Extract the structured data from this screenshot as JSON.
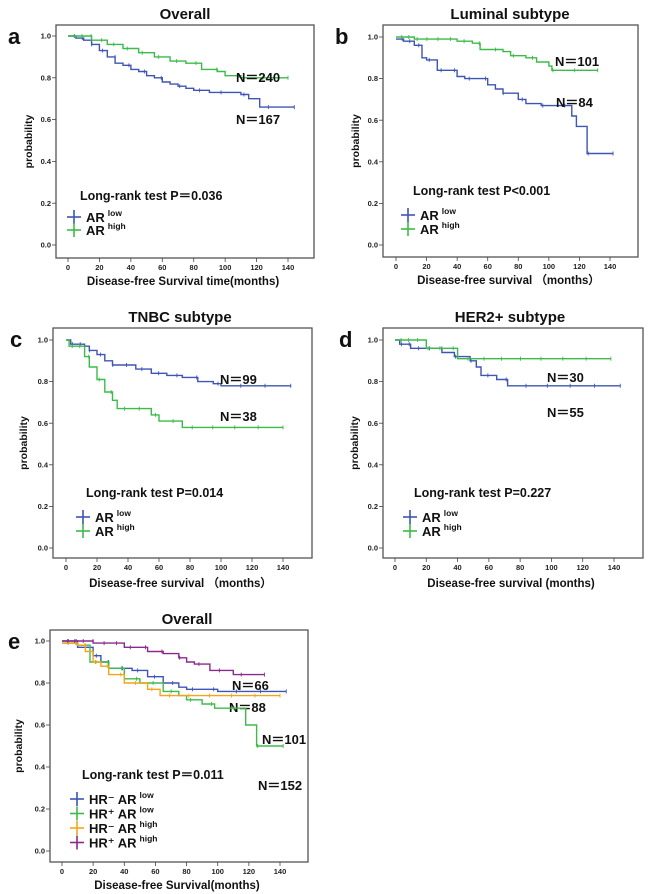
{
  "figure": {
    "panels": [
      "a",
      "b",
      "c",
      "d",
      "e"
    ]
  },
  "chart_data": [
    {
      "id": "a",
      "type": "line",
      "subtype": "kaplan-meier",
      "panel_label": "a",
      "title": "Overall",
      "xlabel": "Disease-free Survival time(months)",
      "ylabel": "probability",
      "xlim": [
        0,
        150
      ],
      "ylim": [
        0,
        1.0
      ],
      "xticks": [
        "0",
        "20",
        "40",
        "60",
        "80",
        "100",
        "120",
        "140"
      ],
      "yticks": [
        "0.0",
        "0.2",
        "0.4",
        "0.6",
        "0.8",
        "1.0"
      ],
      "annotation": "Long-rank test P＝0.036",
      "legend_position": "bottom-left",
      "series": [
        {
          "name": "AR low",
          "legend_main": "AR",
          "legend_sup": "low",
          "color": "#3e55b5",
          "n_label": "N＝167",
          "steps": [
            [
              0,
              1.0
            ],
            [
              5,
              0.99
            ],
            [
              10,
              0.98
            ],
            [
              15,
              0.96
            ],
            [
              20,
              0.93
            ],
            [
              25,
              0.9
            ],
            [
              30,
              0.87
            ],
            [
              35,
              0.86
            ],
            [
              40,
              0.84
            ],
            [
              45,
              0.83
            ],
            [
              50,
              0.81
            ],
            [
              55,
              0.8
            ],
            [
              60,
              0.78
            ],
            [
              65,
              0.77
            ],
            [
              70,
              0.76
            ],
            [
              75,
              0.75
            ],
            [
              80,
              0.74
            ],
            [
              85,
              0.74
            ],
            [
              90,
              0.73
            ],
            [
              100,
              0.73
            ],
            [
              110,
              0.72
            ],
            [
              115,
              0.7
            ],
            [
              122,
              0.66
            ],
            [
              144,
              0.66
            ]
          ]
        },
        {
          "name": "AR high",
          "legend_main": "AR",
          "legend_sup": "high",
          "color": "#3cbb4a",
          "n_label": "N＝240",
          "steps": [
            [
              0,
              1.0
            ],
            [
              10,
              1.0
            ],
            [
              15,
              0.98
            ],
            [
              25,
              0.96
            ],
            [
              35,
              0.94
            ],
            [
              45,
              0.92
            ],
            [
              55,
              0.9
            ],
            [
              65,
              0.88
            ],
            [
              75,
              0.87
            ],
            [
              85,
              0.84
            ],
            [
              95,
              0.83
            ],
            [
              100,
              0.81
            ],
            [
              110,
              0.8
            ],
            [
              140,
              0.8
            ]
          ]
        }
      ]
    },
    {
      "id": "b",
      "type": "line",
      "subtype": "kaplan-meier",
      "panel_label": "b",
      "title": "Luminal subtype",
      "xlabel": "Disease-free survival （months）",
      "ylabel": "probability",
      "xlim": [
        0,
        150
      ],
      "ylim": [
        0,
        1.0
      ],
      "xticks": [
        "0",
        "20",
        "40",
        "60",
        "80",
        "100",
        "120",
        "140"
      ],
      "yticks": [
        "0.0",
        "0.2",
        "0.4",
        "0.6",
        "0.8",
        "1.0"
      ],
      "annotation": "Long-rank test P<0.001",
      "legend_position": "bottom-left",
      "series": [
        {
          "name": "AR low",
          "legend_main": "AR",
          "legend_sup": "low",
          "color": "#3e55b5",
          "n_label": "N＝84",
          "steps": [
            [
              0,
              0.99
            ],
            [
              5,
              0.98
            ],
            [
              12,
              0.96
            ],
            [
              17,
              0.9
            ],
            [
              20,
              0.89
            ],
            [
              27,
              0.84
            ],
            [
              40,
              0.81
            ],
            [
              45,
              0.8
            ],
            [
              60,
              0.77
            ],
            [
              65,
              0.75
            ],
            [
              70,
              0.73
            ],
            [
              80,
              0.7
            ],
            [
              85,
              0.68
            ],
            [
              95,
              0.67
            ],
            [
              115,
              0.62
            ],
            [
              118,
              0.57
            ],
            [
              125,
              0.44
            ],
            [
              142,
              0.44
            ]
          ]
        },
        {
          "name": "AR high",
          "legend_main": "AR",
          "legend_sup": "high",
          "color": "#3cbb4a",
          "n_label": "N＝101",
          "steps": [
            [
              0,
              1.0
            ],
            [
              12,
              0.99
            ],
            [
              40,
              0.98
            ],
            [
              50,
              0.97
            ],
            [
              55,
              0.94
            ],
            [
              70,
              0.93
            ],
            [
              75,
              0.91
            ],
            [
              85,
              0.9
            ],
            [
              92,
              0.88
            ],
            [
              100,
              0.86
            ],
            [
              102,
              0.84
            ],
            [
              132,
              0.84
            ]
          ]
        }
      ]
    },
    {
      "id": "c",
      "type": "line",
      "subtype": "kaplan-meier",
      "panel_label": "c",
      "title": "TNBC subtype",
      "xlabel": "Disease-free survival （months）",
      "ylabel": "probability",
      "xlim": [
        0,
        150
      ],
      "ylim": [
        0,
        1.0
      ],
      "xticks": [
        "0",
        "20",
        "40",
        "60",
        "80",
        "100",
        "120",
        "140"
      ],
      "yticks": [
        "0.0",
        "0.2",
        "0.4",
        "0.6",
        "0.8",
        "1.0"
      ],
      "annotation": "Long-rank test P=0.014",
      "legend_position": "bottom-left",
      "series": [
        {
          "name": "AR low",
          "legend_main": "AR",
          "legend_sup": "low",
          "color": "#3e55b5",
          "n_label": "N＝99",
          "steps": [
            [
              0,
              1.0
            ],
            [
              3,
              0.98
            ],
            [
              12,
              0.97
            ],
            [
              15,
              0.95
            ],
            [
              20,
              0.93
            ],
            [
              25,
              0.9
            ],
            [
              30,
              0.88
            ],
            [
              45,
              0.86
            ],
            [
              55,
              0.84
            ],
            [
              65,
              0.83
            ],
            [
              75,
              0.82
            ],
            [
              85,
              0.8
            ],
            [
              95,
              0.79
            ],
            [
              100,
              0.78
            ],
            [
              145,
              0.78
            ]
          ]
        },
        {
          "name": "AR high",
          "legend_main": "AR",
          "legend_sup": "high",
          "color": "#3cbb4a",
          "n_label": "N＝38",
          "steps": [
            [
              0,
              1.0
            ],
            [
              2,
              0.97
            ],
            [
              12,
              0.92
            ],
            [
              15,
              0.87
            ],
            [
              20,
              0.81
            ],
            [
              25,
              0.75
            ],
            [
              30,
              0.71
            ],
            [
              33,
              0.67
            ],
            [
              55,
              0.64
            ],
            [
              60,
              0.61
            ],
            [
              75,
              0.58
            ],
            [
              140,
              0.58
            ]
          ]
        }
      ]
    },
    {
      "id": "d",
      "type": "line",
      "subtype": "kaplan-meier",
      "panel_label": "d",
      "title": "HER2+ subtype",
      "xlabel": "Disease-free survival (months)",
      "ylabel": "probability",
      "xlim": [
        0,
        150
      ],
      "ylim": [
        0,
        1.0
      ],
      "xticks": [
        "0",
        "20",
        "40",
        "60",
        "80",
        "100",
        "120",
        "140"
      ],
      "yticks": [
        "0.0",
        "0.2",
        "0.4",
        "0.6",
        "0.8",
        "1.0"
      ],
      "annotation": "Long-rank test P=0.227",
      "legend_position": "bottom-left",
      "series": [
        {
          "name": "AR low",
          "legend_main": "AR",
          "legend_sup": "low",
          "color": "#3e55b5",
          "n_label": "N＝55",
          "steps": [
            [
              0,
              1.0
            ],
            [
              3,
              0.98
            ],
            [
              10,
              0.96
            ],
            [
              22,
              0.96
            ],
            [
              30,
              0.94
            ],
            [
              38,
              0.92
            ],
            [
              48,
              0.9
            ],
            [
              52,
              0.87
            ],
            [
              55,
              0.83
            ],
            [
              65,
              0.81
            ],
            [
              72,
              0.78
            ],
            [
              144,
              0.78
            ]
          ]
        },
        {
          "name": "AR high",
          "legend_main": "AR",
          "legend_sup": "high",
          "color": "#3cbb4a",
          "n_label": "N＝30",
          "steps": [
            [
              0,
              1.0
            ],
            [
              20,
              0.96
            ],
            [
              40,
              0.91
            ],
            [
              138,
              0.91
            ]
          ]
        }
      ]
    },
    {
      "id": "e",
      "type": "line",
      "subtype": "kaplan-meier",
      "panel_label": "e",
      "title": "Overall",
      "xlabel": "Disease-free Survival(months)",
      "ylabel": "probability",
      "xlim": [
        0,
        150
      ],
      "ylim": [
        0,
        1.0
      ],
      "xticks": [
        "0",
        "20",
        "40",
        "60",
        "80",
        "100",
        "120",
        "140"
      ],
      "yticks": [
        "0.0",
        "0.2",
        "0.4",
        "0.6",
        "0.8",
        "1.0"
      ],
      "annotation": "Long-rank test P＝0.011",
      "legend_position": "bottom-left",
      "series": [
        {
          "name": "HR- AR low",
          "legend_main": "HR⁻ AR",
          "legend_sup": "low",
          "color": "#3e55b5",
          "n_label": "N＝88",
          "steps": [
            [
              0,
              1.0
            ],
            [
              10,
              0.97
            ],
            [
              20,
              0.93
            ],
            [
              25,
              0.9
            ],
            [
              30,
              0.87
            ],
            [
              45,
              0.86
            ],
            [
              55,
              0.83
            ],
            [
              65,
              0.8
            ],
            [
              75,
              0.78
            ],
            [
              80,
              0.77
            ],
            [
              100,
              0.76
            ],
            [
              144,
              0.76
            ]
          ]
        },
        {
          "name": "HR+ AR low",
          "legend_main": "HR⁺ AR",
          "legend_sup": "low",
          "color": "#3cbb4a",
          "n_label": "N＝101",
          "steps": [
            [
              0,
              0.99
            ],
            [
              10,
              0.98
            ],
            [
              18,
              0.9
            ],
            [
              30,
              0.87
            ],
            [
              40,
              0.82
            ],
            [
              50,
              0.8
            ],
            [
              65,
              0.76
            ],
            [
              75,
              0.74
            ],
            [
              80,
              0.72
            ],
            [
              90,
              0.7
            ],
            [
              98,
              0.68
            ],
            [
              115,
              0.68
            ],
            [
              118,
              0.6
            ],
            [
              125,
              0.5
            ],
            [
              142,
              0.5
            ]
          ]
        },
        {
          "name": "HR- AR high",
          "legend_main": "HR⁻ AR",
          "legend_sup": "high",
          "color": "#f4a31a",
          "n_label": "N＝66",
          "steps": [
            [
              0,
              0.99
            ],
            [
              10,
              0.98
            ],
            [
              15,
              0.95
            ],
            [
              20,
              0.9
            ],
            [
              25,
              0.88
            ],
            [
              30,
              0.84
            ],
            [
              40,
              0.8
            ],
            [
              55,
              0.77
            ],
            [
              63,
              0.74
            ],
            [
              140,
              0.74
            ]
          ]
        },
        {
          "name": "HR+ AR high",
          "legend_main": "HR⁺ AR",
          "legend_sup": "high",
          "color": "#8a2a8c",
          "n_label": "N＝152",
          "steps": [
            [
              0,
              1.0
            ],
            [
              20,
              0.99
            ],
            [
              40,
              0.97
            ],
            [
              55,
              0.95
            ],
            [
              65,
              0.94
            ],
            [
              75,
              0.92
            ],
            [
              80,
              0.9
            ],
            [
              85,
              0.89
            ],
            [
              95,
              0.86
            ],
            [
              110,
              0.84
            ],
            [
              130,
              0.84
            ]
          ]
        }
      ]
    }
  ]
}
